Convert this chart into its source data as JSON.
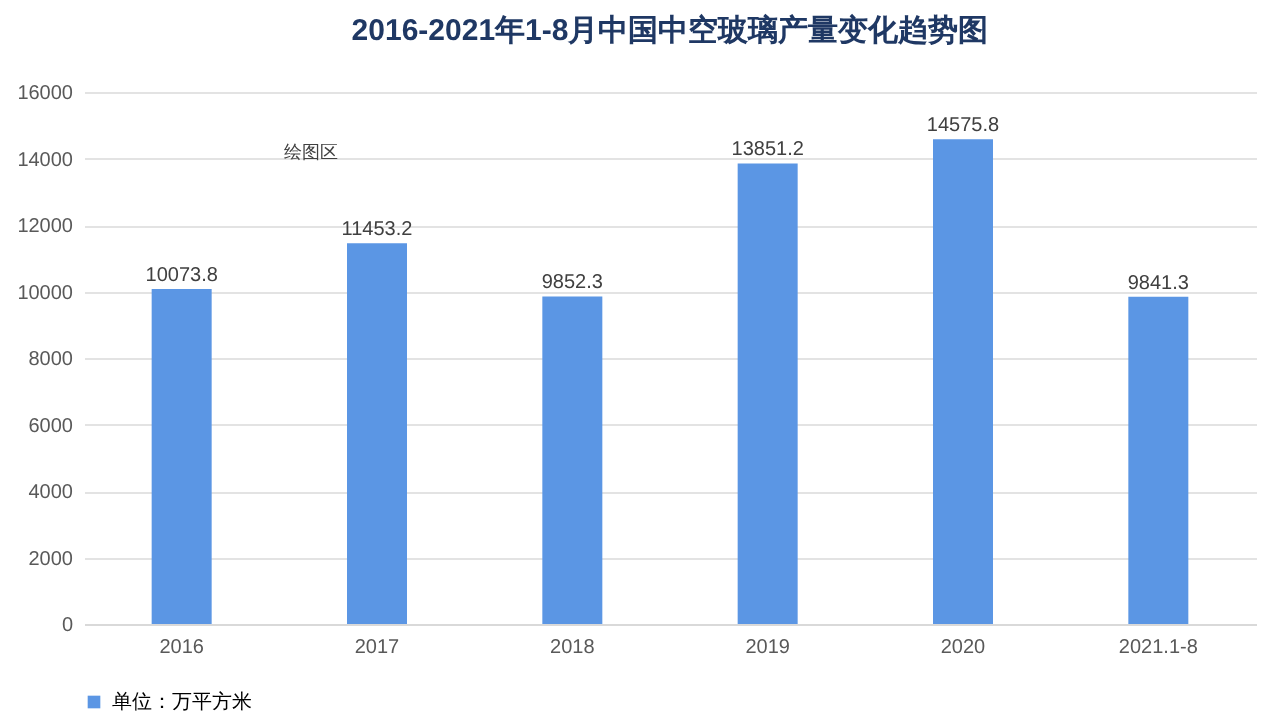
{
  "chart_data": {
    "type": "bar",
    "title": "2016-2021年1-8月中国中空玻璃产量变化趋势图",
    "categories": [
      "2016",
      "2017",
      "2018",
      "2019",
      "2020",
      "2021.1-8"
    ],
    "series": [
      {
        "name": "单位：万平方米",
        "color": "#5b96e4",
        "values": [
          10073.8,
          11453.2,
          9852.3,
          13851.2,
          14575.8,
          9841.3
        ]
      }
    ],
    "data_labels": true,
    "ylim": [
      0,
      16000
    ],
    "yticks": [
      0,
      2000,
      4000,
      6000,
      8000,
      10000,
      12000,
      14000,
      16000
    ],
    "grid": "y",
    "legend": "bottom",
    "annotations": [
      "绘图区"
    ]
  }
}
